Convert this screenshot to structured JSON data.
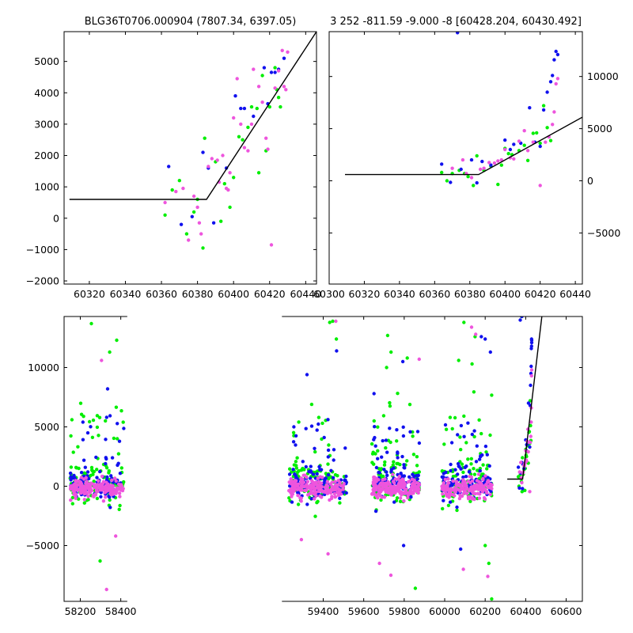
{
  "colors": {
    "green": "#00ee00",
    "blue": "#1111ee",
    "pink": "#ee55dd",
    "line": "#000000"
  },
  "chart_data": [
    {
      "type": "scatter",
      "panel": "top-left",
      "title": "BLG36T0706.000904 (7807.34, 6397.05)",
      "xlim": [
        60306,
        60446
      ],
      "ylim": [
        -2100,
        5950
      ],
      "xticks": [
        60320,
        60340,
        60360,
        60380,
        60400,
        60420,
        60440
      ],
      "yticks": [
        -2000,
        -1000,
        0,
        1000,
        2000,
        3000,
        4000,
        5000
      ],
      "ytick_side": "left",
      "fit_line": [
        [
          60309,
          600
        ],
        [
          60385,
          600
        ],
        [
          60446,
          5950
        ]
      ],
      "series": [
        {
          "color": "green",
          "points": [
            [
              60362,
              100
            ],
            [
              60366,
              900
            ],
            [
              60370,
              1200
            ],
            [
              60374,
              -500
            ],
            [
              60378,
              200
            ],
            [
              60380,
              600
            ],
            [
              60383,
              -950
            ],
            [
              60384,
              2550
            ],
            [
              60390,
              1800
            ],
            [
              60393,
              -100
            ],
            [
              60395,
              1100
            ],
            [
              60398,
              350
            ],
            [
              60400,
              1300
            ],
            [
              60403,
              2600
            ],
            [
              60405,
              2500
            ],
            [
              60408,
              2900
            ],
            [
              60410,
              3550
            ],
            [
              60413,
              3500
            ],
            [
              60414,
              1450
            ],
            [
              60416,
              4550
            ],
            [
              60418,
              2150
            ],
            [
              60420,
              3550
            ],
            [
              60423,
              4800
            ],
            [
              60424,
              4100
            ],
            [
              60425,
              3850
            ],
            [
              60426,
              3550
            ]
          ]
        },
        {
          "color": "blue",
          "points": [
            [
              60364,
              1650
            ],
            [
              60371,
              -200
            ],
            [
              60377,
              50
            ],
            [
              60383,
              2100
            ],
            [
              60386,
              1600
            ],
            [
              60389,
              -150
            ],
            [
              60396,
              1600
            ],
            [
              60401,
              3900
            ],
            [
              60404,
              3500
            ],
            [
              60406,
              3500
            ],
            [
              60411,
              3250
            ],
            [
              60417,
              4800
            ],
            [
              60419,
              3650
            ],
            [
              60421,
              4650
            ],
            [
              60423,
              4650
            ],
            [
              60425,
              4750
            ],
            [
              60428,
              5100
            ]
          ]
        },
        {
          "color": "pink",
          "points": [
            [
              60362,
              500
            ],
            [
              60368,
              850
            ],
            [
              60372,
              950
            ],
            [
              60375,
              -700
            ],
            [
              60378,
              700
            ],
            [
              60380,
              350
            ],
            [
              60381,
              -150
            ],
            [
              60382,
              -500
            ],
            [
              60386,
              1650
            ],
            [
              60388,
              1900
            ],
            [
              60391,
              1850
            ],
            [
              60392,
              1150
            ],
            [
              60394,
              2000
            ],
            [
              60396,
              950
            ],
            [
              60397,
              900
            ],
            [
              60398,
              1450
            ],
            [
              60400,
              3200
            ],
            [
              60402,
              4450
            ],
            [
              60404,
              3000
            ],
            [
              60406,
              2250
            ],
            [
              60408,
              2150
            ],
            [
              60410,
              3000
            ],
            [
              60411,
              4750
            ],
            [
              60414,
              4200
            ],
            [
              60416,
              3700
            ],
            [
              60418,
              2550
            ],
            [
              60419,
              2200
            ],
            [
              60421,
              -850
            ],
            [
              60423,
              4150
            ],
            [
              60425,
              4700
            ],
            [
              60427,
              5350
            ],
            [
              60428,
              4200
            ],
            [
              60429,
              4100
            ],
            [
              60430,
              5300
            ]
          ]
        }
      ]
    },
    {
      "type": "scatter",
      "panel": "top-right",
      "title": "3 252 -811.59 -9.000 -8 [60428.204, 60430.492]",
      "xlim": [
        60300,
        60444
      ],
      "ylim": [
        -9900,
        14300
      ],
      "xticks": [
        60300,
        60320,
        60340,
        60360,
        60380,
        60400,
        60420,
        60440
      ],
      "yticks": [
        -5000,
        0,
        5000,
        10000
      ],
      "ytick_side": "right",
      "fit_line": [
        [
          60309,
          600
        ],
        [
          60385,
          600
        ],
        [
          60444,
          6100
        ]
      ],
      "series": [
        {
          "color": "green",
          "points": [
            [
              60364,
              800
            ],
            [
              60367,
              0
            ],
            [
              60370,
              700
            ],
            [
              60374,
              1000
            ],
            [
              60377,
              700
            ],
            [
              60379,
              400
            ],
            [
              60382,
              -450
            ],
            [
              60384,
              2400
            ],
            [
              60388,
              1000
            ],
            [
              60392,
              1400
            ],
            [
              60396,
              -350
            ],
            [
              60398,
              1500
            ],
            [
              60400,
              3100
            ],
            [
              60402,
              2600
            ],
            [
              60404,
              2500
            ],
            [
              60408,
              2900
            ],
            [
              60411,
              3400
            ],
            [
              60413,
              1950
            ],
            [
              60416,
              4550
            ],
            [
              60418,
              4600
            ],
            [
              60420,
              3600
            ],
            [
              60422,
              7200
            ],
            [
              60424,
              5100
            ],
            [
              60426,
              3850
            ]
          ]
        },
        {
          "color": "blue",
          "points": [
            [
              60364,
              1600
            ],
            [
              60369,
              -150
            ],
            [
              60373,
              14200
            ],
            [
              60375,
              1100
            ],
            [
              60381,
              2000
            ],
            [
              60384,
              -200
            ],
            [
              60387,
              1850
            ],
            [
              60392,
              1500
            ],
            [
              60400,
              3900
            ],
            [
              60403,
              3000
            ],
            [
              60405,
              3500
            ],
            [
              60409,
              3600
            ],
            [
              60414,
              7000
            ],
            [
              60417,
              3700
            ],
            [
              60420,
              3300
            ],
            [
              60422,
              6800
            ],
            [
              60424,
              8500
            ],
            [
              60426,
              9500
            ],
            [
              60427,
              10100
            ],
            [
              60428,
              11600
            ],
            [
              60429,
              12400
            ],
            [
              60430,
              12100
            ]
          ]
        },
        {
          "color": "pink",
          "points": [
            [
              60370,
              1200
            ],
            [
              60376,
              2000
            ],
            [
              60378,
              700
            ],
            [
              60381,
              300
            ],
            [
              60386,
              1100
            ],
            [
              60388,
              1200
            ],
            [
              60391,
              1750
            ],
            [
              60394,
              1700
            ],
            [
              60396,
              1900
            ],
            [
              60398,
              2000
            ],
            [
              60400,
              3000
            ],
            [
              60403,
              2200
            ],
            [
              60405,
              2100
            ],
            [
              60408,
              3800
            ],
            [
              60411,
              4800
            ],
            [
              60413,
              2900
            ],
            [
              60416,
              3700
            ],
            [
              60420,
              -450
            ],
            [
              60423,
              3700
            ],
            [
              60425,
              4200
            ],
            [
              60427,
              5400
            ],
            [
              60428,
              6600
            ],
            [
              60429,
              9300
            ],
            [
              60430,
              9800
            ]
          ]
        }
      ]
    },
    {
      "type": "scatter",
      "panel": "bottom",
      "title": "",
      "xlim": [
        58120,
        60680
      ],
      "ylim": [
        -9700,
        14300
      ],
      "xticks": [
        58200,
        58400,
        59400,
        59600,
        59800,
        60000,
        60200,
        60400,
        60600
      ],
      "yticks": [
        -5000,
        0,
        5000,
        10000
      ],
      "ytick_side": "left",
      "gap": [
        58432,
        59196
      ],
      "seasons": [
        [
          58150,
          58415
        ],
        [
          59230,
          59515
        ],
        [
          59640,
          59875
        ],
        [
          59985,
          60235
        ],
        [
          60362,
          60432
        ]
      ],
      "fit_line": [
        [
          60309,
          600
        ],
        [
          60385,
          600
        ],
        [
          60480,
          14300
        ]
      ],
      "outliers": {
        "green": [
          [
            58255,
            13700
          ],
          [
            58380,
            12300
          ],
          [
            58345,
            11300
          ],
          [
            58298,
            -6300
          ],
          [
            59432,
            13800
          ],
          [
            59447,
            13900
          ],
          [
            59465,
            12400
          ],
          [
            59718,
            12700
          ],
          [
            59735,
            11300
          ],
          [
            59713,
            10000
          ],
          [
            59815,
            10800
          ],
          [
            59855,
            -8600
          ],
          [
            60069,
            10600
          ],
          [
            60095,
            13800
          ],
          [
            60135,
            10300
          ],
          [
            60200,
            -5000
          ],
          [
            60218,
            -6500
          ],
          [
            60232,
            -9500
          ],
          [
            60150,
            12600
          ],
          [
            60380,
            14300
          ]
        ],
        "blue": [
          [
            58335,
            8200
          ],
          [
            58213,
            5400
          ],
          [
            59255,
            5000
          ],
          [
            59320,
            9400
          ],
          [
            59466,
            11400
          ],
          [
            59651,
            7800
          ],
          [
            59793,
            10500
          ],
          [
            59797,
            -5000
          ],
          [
            60079,
            -5300
          ],
          [
            60181,
            12600
          ],
          [
            60200,
            12400
          ],
          [
            60226,
            11300
          ],
          [
            60381,
            14300
          ],
          [
            60430,
            12300
          ],
          [
            60429,
            11800
          ]
        ],
        "pink": [
          [
            58305,
            10600
          ],
          [
            58330,
            -8700
          ],
          [
            58375,
            -4200
          ],
          [
            59292,
            -4500
          ],
          [
            59424,
            -5700
          ],
          [
            59462,
            13900
          ],
          [
            59678,
            -6500
          ],
          [
            59734,
            -7500
          ],
          [
            59874,
            10700
          ],
          [
            60092,
            -7000
          ],
          [
            60133,
            13400
          ],
          [
            60153,
            12800
          ],
          [
            60213,
            -7600
          ]
        ]
      }
    }
  ]
}
